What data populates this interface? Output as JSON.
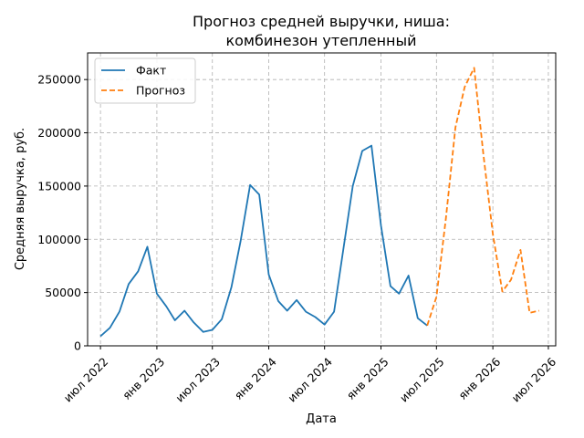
{
  "chart_data": {
    "type": "line",
    "title_line1": "Прогноз средней выручки, ниша:",
    "title_line2": "комбинезон утепленный",
    "xlabel": "Дата",
    "ylabel": "Средняя выручка, руб.",
    "ylim": [
      0,
      275000
    ],
    "xlim": [
      "2022-05-20",
      "2026-07-25"
    ],
    "grid": true,
    "legend_position": "top-left",
    "yticks": [
      0,
      50000,
      100000,
      150000,
      200000,
      250000
    ],
    "ytick_labels": [
      "0",
      "50000",
      "100000",
      "150000",
      "200000",
      "250000"
    ],
    "xticks": [
      {
        "date": "2022-07-01",
        "label": "июл 2022"
      },
      {
        "date": "2023-01-01",
        "label": "янв 2023"
      },
      {
        "date": "2023-07-01",
        "label": "июл 2023"
      },
      {
        "date": "2024-01-01",
        "label": "янв 2024"
      },
      {
        "date": "2024-07-01",
        "label": "июл 2024"
      },
      {
        "date": "2025-01-01",
        "label": "янв 2025"
      },
      {
        "date": "2025-07-01",
        "label": "июл 2025"
      },
      {
        "date": "2026-01-01",
        "label": "янв 2026"
      },
      {
        "date": "2026-07-01",
        "label": "июл 2026"
      }
    ],
    "series": [
      {
        "name": "Факт",
        "color": "#1f77b4",
        "style": "solid",
        "x": [
          "2022-07-01",
          "2022-08-01",
          "2022-09-01",
          "2022-10-01",
          "2022-11-01",
          "2022-12-01",
          "2023-01-01",
          "2023-02-01",
          "2023-03-01",
          "2023-04-01",
          "2023-05-01",
          "2023-06-01",
          "2023-07-01",
          "2023-08-01",
          "2023-09-01",
          "2023-10-01",
          "2023-11-01",
          "2023-12-01",
          "2024-01-01",
          "2024-02-01",
          "2024-03-01",
          "2024-04-01",
          "2024-05-01",
          "2024-06-01",
          "2024-07-01",
          "2024-08-01",
          "2024-09-01",
          "2024-10-01",
          "2024-11-01",
          "2024-12-01",
          "2025-01-01",
          "2025-02-01",
          "2025-03-01",
          "2025-04-01",
          "2025-05-01",
          "2025-06-01"
        ],
        "values": [
          9000,
          17000,
          32000,
          58000,
          70000,
          93000,
          49000,
          37000,
          24000,
          33000,
          22000,
          13000,
          15000,
          25000,
          55000,
          98000,
          151000,
          142000,
          67000,
          42000,
          33000,
          43000,
          32000,
          27000,
          20000,
          32000,
          92000,
          150000,
          183000,
          188000,
          113000,
          56000,
          49000,
          66000,
          26000,
          19000
        ]
      },
      {
        "name": "Прогноз",
        "color": "#ff7f0e",
        "style": "dashed",
        "x": [
          "2025-06-01",
          "2025-07-01",
          "2025-08-01",
          "2025-09-01",
          "2025-10-01",
          "2025-11-01",
          "2025-12-01",
          "2026-01-01",
          "2026-02-01",
          "2026-03-01",
          "2026-04-01",
          "2026-05-01",
          "2026-06-01"
        ],
        "values": [
          19000,
          46000,
          120000,
          205000,
          243000,
          261000,
          180000,
          105000,
          51000,
          62000,
          90000,
          31000,
          33000
        ]
      }
    ]
  }
}
